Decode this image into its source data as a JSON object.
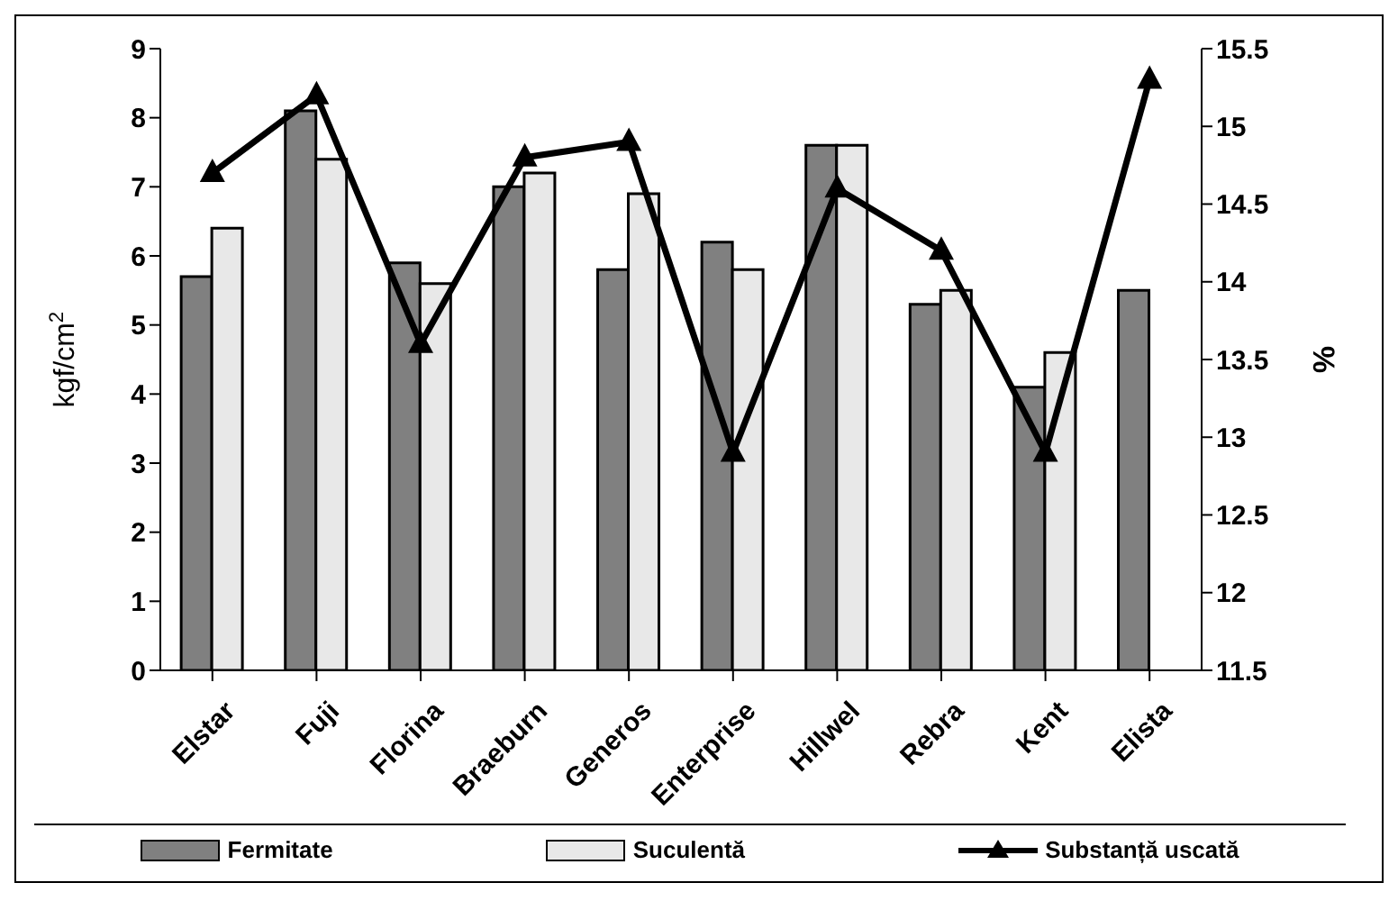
{
  "chart_data": {
    "type": "bar",
    "ylabel": "kgf/cm$^{2}$",
    "y2label": "%",
    "categories": [
      "Elstar",
      "Fuji",
      "Florina",
      "Braeburn",
      "Generos",
      "Enterprise",
      "Hillwel",
      "Rebra",
      "Kent",
      "Elista"
    ],
    "series": [
      {
        "name": "Fermitate",
        "color": "#808080",
        "values": [
          5.7,
          8.1,
          5.9,
          7.0,
          5.8,
          6.2,
          7.6,
          5.3,
          4.1,
          5.5
        ]
      },
      {
        "name": "Suculentă",
        "color": "#e8e8e8",
        "values": [
          6.4,
          7.4,
          5.6,
          7.2,
          6.9,
          5.8,
          7.6,
          5.5,
          4.6,
          null
        ]
      },
      {
        "name": "Substanță uscată",
        "type": "line",
        "axis": "y2",
        "color": "#000000",
        "marker": "triangle",
        "values": [
          14.7,
          15.2,
          13.6,
          14.8,
          14.9,
          12.9,
          14.6,
          14.2,
          12.9,
          15.3
        ]
      }
    ],
    "ylim": [
      0,
      9
    ],
    "yticks": [
      0,
      1,
      2,
      3,
      4,
      5,
      6,
      7,
      8,
      9
    ],
    "y2lim": [
      11.5,
      15.5
    ],
    "y2ticks": [
      11.5,
      12,
      12.5,
      13,
      13.5,
      14,
      14.5,
      15,
      15.5
    ],
    "grid": false,
    "legend": "bottom"
  }
}
